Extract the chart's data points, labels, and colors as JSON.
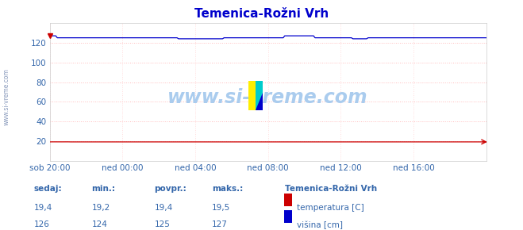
{
  "title": "Temenica-Rožni Vrh",
  "bg_color": "#ffffff",
  "plot_bg_color": "#ffffff",
  "grid_color_h": "#ffbbbb",
  "grid_color_v": "#ffdddd",
  "xlim": [
    0,
    288
  ],
  "ylim": [
    0,
    140
  ],
  "yticks": [
    20,
    40,
    60,
    80,
    100,
    120
  ],
  "xtick_labels": [
    "sob 20:00",
    "ned 00:00",
    "ned 04:00",
    "ned 08:00",
    "ned 12:00",
    "ned 16:00"
  ],
  "xtick_positions": [
    0,
    48,
    96,
    144,
    192,
    240
  ],
  "temperatura_color": "#cc0000",
  "visina_color": "#0000cc",
  "watermark": "www.si-vreme.com",
  "watermark_color": "#aaccee",
  "sidebar_text": "www.si-vreme.com",
  "sidebar_color": "#8899bb",
  "legend_title": "Temenica-Rožni Vrh",
  "label_temperatura": "temperatura [C]",
  "label_visina": "višina [cm]",
  "stats_headers": [
    "sedaj:",
    "min.:",
    "povpr.:",
    "maks.:"
  ],
  "stats_color": "#3366aa",
  "temp_vals": [
    "19,4",
    "19,2",
    "19,4",
    "19,5"
  ],
  "vis_vals": [
    "126",
    "124",
    "125",
    "127"
  ]
}
